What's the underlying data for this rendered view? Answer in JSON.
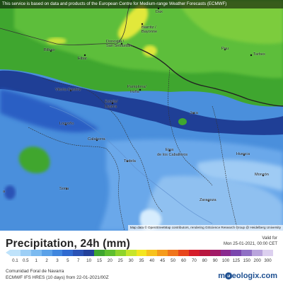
{
  "banner": "This service is based on data and products of the European Centre for Medium-range Weather Forecasts (ECMWF)",
  "attribution": "Map data © OpenStreetMap contributors, rendering GIScience Research Group @ Heidelberg University",
  "cities": {
    "dax": "Dax",
    "biarritz": "Biarritz /",
    "bayonne": "Bayonne",
    "donostia": "Donostia /",
    "san_sebastian": "San Sebastián",
    "bilbao": "Bilbao",
    "eibar": "Eibar",
    "pau": "Pau",
    "tarbes": "Tarbes",
    "vitoria": "Vitoria-Gasteiz",
    "pamplona": "Pamplona/",
    "iruna": "Iruña",
    "estella": "Estella/",
    "lizarra": "Lizarra",
    "logrono": "Logroño",
    "jaca": "Jaca",
    "calahorra": "Calahorra",
    "ejea": "Ejea",
    "ejea2": "de los Caballeros",
    "tudela": "Tudela",
    "huesca": "Huesca",
    "monzon": "Monzón",
    "soria": "Soria",
    "zaragoza": "Zaragoza",
    "a": "a"
  },
  "legend": {
    "title": "Precipitation, 24h (mm)",
    "valid_for": "Valid for",
    "valid_time": "Mon 25-01-2021, 00:00 CET",
    "tick_labels": [
      "0.1",
      "0.5",
      "1",
      "2",
      "3",
      "5",
      "7",
      "10",
      "15",
      "20",
      "25",
      "30",
      "35",
      "40",
      "45",
      "50",
      "60",
      "70",
      "80",
      "90",
      "100",
      "125",
      "150",
      "200",
      "300"
    ],
    "colors": [
      "#bfe3fb",
      "#9dcff6",
      "#7bbaf0",
      "#5aa1e8",
      "#3f86de",
      "#2f6ad0",
      "#2a52b5",
      "#23409a",
      "#3fa62f",
      "#5fbf2e",
      "#8fd42b",
      "#c7e52a",
      "#f4e61f",
      "#f7c21c",
      "#f59b1b",
      "#f0751b",
      "#e8461c",
      "#d51d2a",
      "#b8173e",
      "#a11a66",
      "#8a2a8f",
      "#7a46ad",
      "#8f6fc4",
      "#b9a4dc",
      "#dcd0ef"
    ]
  },
  "footer": {
    "region": "Comunidad Foral de Navarra",
    "model": "ECMWF IFS HRES (10 days) from 22-01-2021/00Z",
    "brand": "meteologix.com"
  }
}
